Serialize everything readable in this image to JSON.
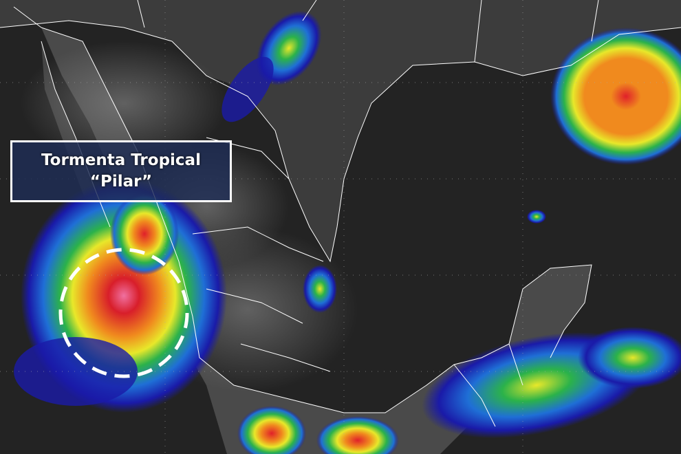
{
  "annotation": {
    "line1": "Tormenta Tropical",
    "line2": "“Pilar”"
  },
  "colors": {
    "ocean": "#232323",
    "land": "#4a4a4a",
    "borders": "#ffffff",
    "label_bg": "#1e2d55",
    "cloud_scale": [
      "#1a1aa8",
      "#1f6fd6",
      "#2bb24a",
      "#e8e82a",
      "#f08a1e",
      "#e0202a",
      "#f070a0"
    ]
  },
  "storm_marker": {
    "style": "dashed-circle",
    "color": "#ffffff"
  }
}
